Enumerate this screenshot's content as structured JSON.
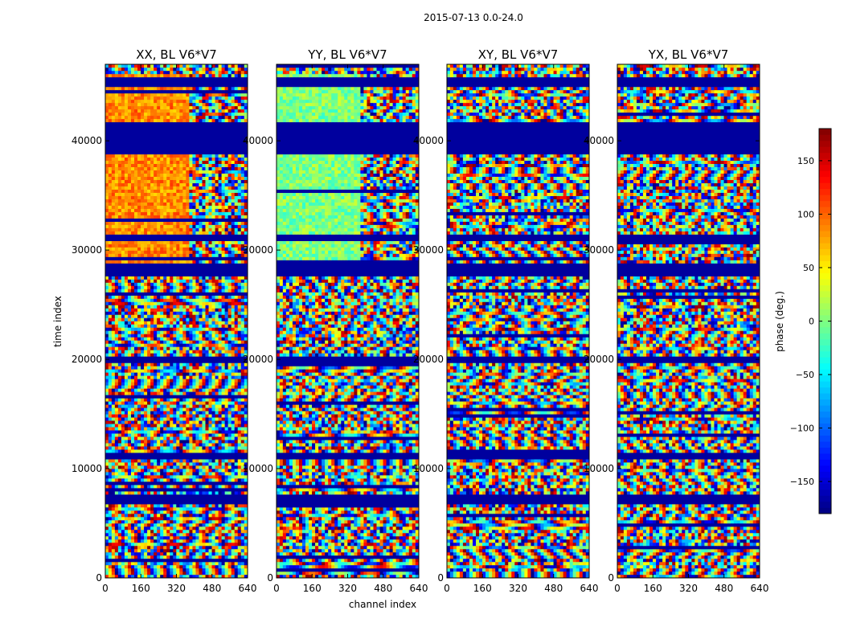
{
  "chart_data": {
    "type": "heatmap",
    "title": "2015-07-13 0.0-24.0",
    "xlabel": "channel index",
    "ylabel": "time index",
    "xlim": [
      0,
      640
    ],
    "ylim": [
      0,
      47000
    ],
    "xticks": [
      "0",
      "160",
      "320",
      "480",
      "640"
    ],
    "xtick_values": [
      0,
      160,
      320,
      480,
      640
    ],
    "yticks": [
      "0",
      "10000",
      "20000",
      "30000",
      "40000"
    ],
    "ytick_values": [
      0,
      10000,
      20000,
      30000,
      40000
    ],
    "panels": [
      {
        "title": "XX, BL V6*V7",
        "polarization": "XX"
      },
      {
        "title": "YY, BL V6*V7",
        "polarization": "YY"
      },
      {
        "title": "XY, BL V6*V7",
        "polarization": "XY"
      },
      {
        "title": "YX, BL V6*V7",
        "polarization": "YX"
      }
    ],
    "colorbar": {
      "label": "phase (deg.)",
      "colormap": "jet",
      "range": [
        -180,
        180
      ],
      "tick_values": [
        -150,
        -100,
        -50,
        0,
        50,
        100,
        150
      ],
      "tick_labels": [
        "−150",
        "−100",
        "−50",
        "0",
        "50",
        "100",
        "150"
      ]
    },
    "flagged_time_bands": [
      [
        6800,
        7500
      ],
      [
        10800,
        11400
      ],
      [
        19800,
        20400
      ],
      [
        27600,
        28900
      ],
      [
        30800,
        31300
      ],
      [
        38800,
        41600
      ],
      [
        45000,
        45700
      ]
    ]
  }
}
